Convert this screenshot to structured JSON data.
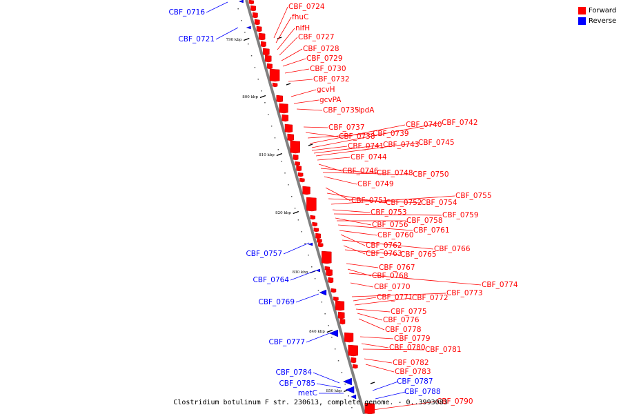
{
  "legend": [
    {
      "label": "Forward",
      "color": "#ff0000"
    },
    {
      "label": "Reverse",
      "color": "#0000ff"
    }
  ],
  "caption": "Clostridium botulinum F str. 230613, complete genome. - 0..3993083",
  "colors": {
    "forward": "#ff0000",
    "reverse": "#0000ff",
    "backbone": "#808080",
    "tick": "#000000"
  },
  "ticks": [
    "790 kbp",
    "800 kbp",
    "810 kbp",
    "820 kbp",
    "830 kbp",
    "840 kbp",
    "850 kbp"
  ],
  "forward_genes": [
    "CBF_0724",
    "fhuC",
    "nifH",
    "CBF_0727",
    "CBF_0728",
    "CBF_0729",
    "CBF_0730",
    "CBF_0732",
    "gcvH",
    "gcvPA",
    "CBF_0735",
    "lpdA",
    "CBF_0737",
    "CBF_0738",
    "CBF_0739",
    "CBF_0740",
    "CBF_0742",
    "CBF_0741",
    "CBF_0743",
    "CBF_0745",
    "CBF_0744",
    "CBF_0746",
    "CBF_0748",
    "CBF_0750",
    "CBF_0749",
    "CBF_0751",
    "CBF_0752",
    "CBF_0754",
    "CBF_0755",
    "CBF_0753",
    "CBF_0759",
    "CBF_0756",
    "CBF_0758",
    "CBF_0761",
    "CBF_0760",
    "CBF_0762",
    "CBF_0766",
    "CBF_0763",
    "CBF_0765",
    "CBF_0767",
    "CBF_0768",
    "CBF_0774",
    "CBF_0770",
    "CBF_0773",
    "CBF_0771",
    "CBF_0772",
    "CBF_0775",
    "CBF_0776",
    "CBF_0778",
    "CBF_0779",
    "CBF_0780",
    "CBF_0781",
    "CBF_0782",
    "CBF_0783",
    "CBF_0790"
  ],
  "reverse_genes": [
    "CBF_0716",
    "CBF_0721",
    "CBF_0757",
    "CBF_0764",
    "CBF_0769",
    "CBF_0777",
    "CBF_0784",
    "CBF_0785",
    "metC",
    "CBF_0787",
    "CBF_0788"
  ]
}
